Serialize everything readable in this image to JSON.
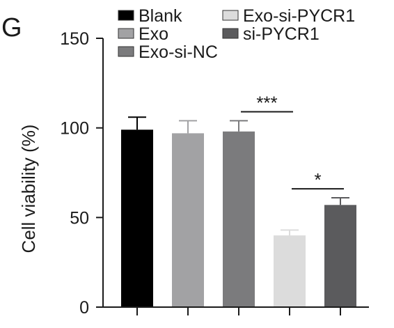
{
  "panel_letter": "G",
  "chart_data": {
    "type": "bar",
    "categories": [
      "Blank",
      "Exo",
      "Exo-si-NC",
      "Exo-si-PYCR1",
      "si-PYCR1"
    ],
    "values": [
      99,
      97,
      98,
      40,
      57
    ],
    "errors": [
      7,
      7,
      6,
      3,
      4
    ],
    "colors": [
      "#000000",
      "#a2a2a4",
      "#7b7b7d",
      "#dcdcdc",
      "#5b5b5d"
    ],
    "ylabel": "Cell viability (%)",
    "ylim": [
      0,
      150
    ],
    "yticks": [
      0,
      50,
      100,
      150
    ],
    "legend": {
      "placement": "top",
      "entries": [
        "Blank",
        "Exo",
        "Exo-si-NC",
        "Exo-si-PYCR1",
        "si-PYCR1"
      ]
    },
    "significance": [
      {
        "from": "Exo-si-NC",
        "to": "Exo-si-PYCR1",
        "label": "***"
      },
      {
        "from": "Exo-si-PYCR1",
        "to": "si-PYCR1",
        "label": "*"
      }
    ],
    "grid": false
  }
}
